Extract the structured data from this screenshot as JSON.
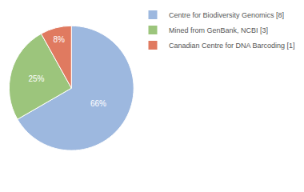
{
  "chart_data": {
    "type": "pie",
    "categories": [
      "Centre for Biodiversity Genomics [8]",
      "Mined from GenBank, NCBI [3]",
      "Canadian Centre for DNA Barcoding [1]"
    ],
    "values": [
      66,
      25,
      8
    ],
    "value_labels": [
      "66%",
      "25%",
      "8%"
    ],
    "colors": [
      "#9db8df",
      "#9cc57c",
      "#e07a60"
    ],
    "data_labels": true,
    "legend": "top right"
  }
}
